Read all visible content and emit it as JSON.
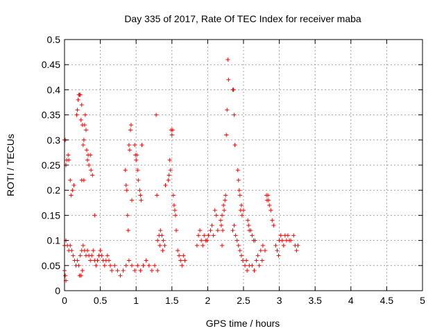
{
  "chart_data": {
    "type": "scatter",
    "title": "Day 335 of 2017, Rate Of TEC Index for receiver maba",
    "xlabel": "GPS time / hours",
    "ylabel": "ROTI / TECUs",
    "xlim": [
      0,
      5
    ],
    "ylim": [
      0,
      0.5
    ],
    "x_ticks": [
      0,
      0.5,
      1,
      1.5,
      2,
      2.5,
      3,
      3.5,
      4,
      4.5,
      5
    ],
    "x_tick_labels": [
      "0",
      "0.5",
      "1",
      "1.5",
      "2",
      "2.5",
      "3",
      "3.5",
      "4",
      "4.5",
      "5"
    ],
    "y_ticks": [
      0,
      0.05,
      0.1,
      0.15,
      0.2,
      0.25,
      0.3,
      0.35,
      0.4,
      0.45,
      0.5
    ],
    "y_tick_labels": [
      "0",
      "0.05",
      "0.1",
      "0.15",
      "0.2",
      "0.25",
      "0.3",
      "0.35",
      "0.4",
      "0.45",
      "0.5"
    ],
    "grid": true,
    "marker": "+",
    "marker_color": "#ff0000",
    "series": [
      {
        "name": "ROTI",
        "points": [
          [
            0.0,
            0.3
          ],
          [
            0.01,
            0.3
          ],
          [
            0.02,
            0.25
          ],
          [
            0.03,
            0.26
          ],
          [
            0.05,
            0.27
          ],
          [
            0.06,
            0.26
          ],
          [
            0.08,
            0.22
          ],
          [
            0.09,
            0.19
          ],
          [
            0.11,
            0.2
          ],
          [
            0.13,
            0.21
          ],
          [
            0.17,
            0.35
          ],
          [
            0.18,
            0.36
          ],
          [
            0.19,
            0.38
          ],
          [
            0.2,
            0.39
          ],
          [
            0.21,
            0.39
          ],
          [
            0.22,
            0.39
          ],
          [
            0.23,
            0.34
          ],
          [
            0.24,
            0.37
          ],
          [
            0.25,
            0.33
          ],
          [
            0.26,
            0.29
          ],
          [
            0.27,
            0.3
          ],
          [
            0.28,
            0.33
          ],
          [
            0.29,
            0.35
          ],
          [
            0.3,
            0.32
          ],
          [
            0.31,
            0.28
          ],
          [
            0.32,
            0.26
          ],
          [
            0.33,
            0.27
          ],
          [
            0.34,
            0.25
          ],
          [
            0.36,
            0.27
          ],
          [
            0.37,
            0.24
          ],
          [
            0.39,
            0.23
          ],
          [
            0.42,
            0.15
          ],
          [
            0.24,
            0.22
          ],
          [
            0.27,
            0.22
          ],
          [
            0.85,
            0.24
          ],
          [
            0.86,
            0.21
          ],
          [
            0.87,
            0.2
          ],
          [
            0.88,
            0.15
          ],
          [
            0.89,
            0.12
          ],
          [
            0.9,
            0.29
          ],
          [
            0.91,
            0.28
          ],
          [
            0.92,
            0.32
          ],
          [
            0.93,
            0.33
          ],
          [
            0.94,
            0.18
          ],
          [
            0.98,
            0.29
          ],
          [
            0.99,
            0.27
          ],
          [
            1.0,
            0.26
          ],
          [
            1.01,
            0.27
          ],
          [
            1.02,
            0.24
          ],
          [
            1.03,
            0.22
          ],
          [
            1.05,
            0.2
          ],
          [
            1.06,
            0.19
          ],
          [
            1.07,
            0.18
          ],
          [
            1.08,
            0.29
          ],
          [
            1.28,
            0.35
          ],
          [
            1.29,
            0.19
          ],
          [
            1.45,
            0.22
          ],
          [
            1.46,
            0.23
          ],
          [
            1.47,
            0.26
          ],
          [
            1.48,
            0.24
          ],
          [
            1.49,
            0.32
          ],
          [
            1.5,
            0.31
          ],
          [
            1.51,
            0.32
          ],
          [
            1.52,
            0.19
          ],
          [
            1.53,
            0.17
          ],
          [
            1.54,
            0.16
          ],
          [
            1.55,
            0.15
          ],
          [
            1.56,
            0.12
          ],
          [
            1.41,
            0.21
          ],
          [
            2.22,
            0.17
          ],
          [
            2.23,
            0.16
          ],
          [
            2.24,
            0.18
          ],
          [
            2.25,
            0.19
          ],
          [
            2.26,
            0.31
          ],
          [
            2.27,
            0.36
          ],
          [
            2.28,
            0.46
          ],
          [
            2.29,
            0.42
          ],
          [
            2.35,
            0.4
          ],
          [
            2.36,
            0.4
          ],
          [
            2.37,
            0.35
          ],
          [
            2.38,
            0.29
          ],
          [
            2.42,
            0.24
          ],
          [
            2.43,
            0.22
          ],
          [
            2.44,
            0.2
          ],
          [
            2.45,
            0.19
          ],
          [
            2.46,
            0.16
          ],
          [
            2.47,
            0.17
          ],
          [
            2.48,
            0.15
          ],
          [
            2.5,
            0.16
          ],
          [
            2.18,
            0.14
          ],
          [
            2.19,
            0.13
          ],
          [
            2.2,
            0.15
          ],
          [
            2.21,
            0.12
          ],
          [
            2.1,
            0.16
          ],
          [
            2.12,
            0.15
          ],
          [
            2.14,
            0.12
          ],
          [
            2.2,
            0.09
          ],
          [
            2.56,
            0.14
          ],
          [
            2.57,
            0.13
          ],
          [
            2.58,
            0.12
          ],
          [
            2.6,
            0.12
          ],
          [
            2.62,
            0.11
          ],
          [
            2.64,
            0.1
          ],
          [
            2.66,
            0.1
          ],
          [
            2.82,
            0.19
          ],
          [
            2.83,
            0.18
          ],
          [
            2.84,
            0.19
          ],
          [
            2.85,
            0.18
          ],
          [
            2.86,
            0.17
          ],
          [
            2.88,
            0.16
          ],
          [
            2.9,
            0.14
          ],
          [
            2.92,
            0.13
          ],
          [
            3.0,
            0.1
          ],
          [
            3.02,
            0.11
          ],
          [
            3.04,
            0.1
          ],
          [
            3.06,
            0.09
          ],
          [
            3.08,
            0.11
          ],
          [
            3.1,
            0.1
          ],
          [
            3.12,
            0.11
          ],
          [
            3.14,
            0.1
          ],
          [
            3.16,
            0.1
          ],
          [
            3.2,
            0.11
          ],
          [
            3.22,
            0.09
          ],
          [
            3.24,
            0.08
          ],
          [
            3.26,
            0.09
          ],
          [
            2.95,
            0.09
          ],
          [
            2.97,
            0.08
          ],
          [
            2.99,
            0.07
          ],
          [
            2.8,
            0.08
          ],
          [
            2.77,
            0.09
          ],
          [
            2.74,
            0.08
          ],
          [
            2.7,
            0.07
          ],
          [
            2.68,
            0.06
          ],
          [
            2.72,
            0.05
          ],
          [
            2.76,
            0.06
          ],
          [
            2.62,
            0.05
          ],
          [
            2.65,
            0.04
          ],
          [
            2.55,
            0.04
          ],
          [
            2.58,
            0.05
          ],
          [
            1.3,
            0.1
          ],
          [
            1.32,
            0.11
          ],
          [
            1.34,
            0.12
          ],
          [
            1.36,
            0.11
          ],
          [
            1.38,
            0.1
          ],
          [
            1.4,
            0.09
          ],
          [
            1.33,
            0.09
          ],
          [
            1.37,
            0.08
          ],
          [
            1.58,
            0.08
          ],
          [
            1.6,
            0.07
          ],
          [
            1.62,
            0.06
          ],
          [
            1.64,
            0.05
          ],
          [
            1.66,
            0.07
          ],
          [
            1.68,
            0.06
          ],
          [
            1.85,
            0.09
          ],
          [
            1.87,
            0.11
          ],
          [
            1.89,
            0.12
          ],
          [
            1.91,
            0.1
          ],
          [
            1.93,
            0.09
          ],
          [
            1.95,
            0.11
          ],
          [
            1.97,
            0.1
          ],
          [
            1.99,
            0.1
          ],
          [
            2.01,
            0.11
          ],
          [
            2.04,
            0.12
          ],
          [
            2.06,
            0.13
          ],
          [
            2.08,
            0.11
          ],
          [
            2.35,
            0.12
          ],
          [
            2.37,
            0.13
          ],
          [
            2.39,
            0.11
          ],
          [
            2.41,
            0.1
          ],
          [
            2.43,
            0.09
          ],
          [
            2.45,
            0.08
          ],
          [
            2.47,
            0.07
          ],
          [
            2.49,
            0.06
          ],
          [
            2.52,
            0.05
          ],
          [
            2.54,
            0.06
          ],
          [
            0.0,
            0.09
          ],
          [
            0.02,
            0.1
          ],
          [
            0.04,
            0.09
          ],
          [
            0.06,
            0.08
          ],
          [
            0.08,
            0.09
          ],
          [
            0.1,
            0.08
          ],
          [
            0.12,
            0.07
          ],
          [
            0.14,
            0.06
          ],
          [
            0.16,
            0.05
          ],
          [
            0.18,
            0.06
          ],
          [
            0.2,
            0.05
          ],
          [
            0.22,
            0.07
          ],
          [
            0.24,
            0.08
          ],
          [
            0.26,
            0.09
          ],
          [
            0.28,
            0.08
          ],
          [
            0.3,
            0.07
          ],
          [
            0.32,
            0.08
          ],
          [
            0.34,
            0.07
          ],
          [
            0.36,
            0.06
          ],
          [
            0.38,
            0.07
          ],
          [
            0.4,
            0.08
          ],
          [
            0.42,
            0.06
          ],
          [
            0.44,
            0.05
          ],
          [
            0.46,
            0.06
          ],
          [
            0.48,
            0.07
          ],
          [
            0.5,
            0.08
          ],
          [
            0.52,
            0.07
          ],
          [
            0.54,
            0.06
          ],
          [
            0.56,
            0.05
          ],
          [
            0.58,
            0.06
          ],
          [
            0.6,
            0.07
          ],
          [
            0.62,
            0.06
          ],
          [
            0.64,
            0.05
          ],
          [
            0.66,
            0.04
          ],
          [
            0.7,
            0.05
          ],
          [
            0.74,
            0.04
          ],
          [
            0.78,
            0.03
          ],
          [
            0.82,
            0.04
          ],
          [
            0.86,
            0.05
          ],
          [
            0.9,
            0.06
          ],
          [
            0.94,
            0.05
          ],
          [
            0.98,
            0.04
          ],
          [
            1.02,
            0.05
          ],
          [
            1.06,
            0.04
          ],
          [
            1.1,
            0.05
          ],
          [
            1.14,
            0.06
          ],
          [
            1.18,
            0.05
          ],
          [
            1.22,
            0.04
          ],
          [
            1.26,
            0.05
          ],
          [
            1.3,
            0.04
          ],
          [
            0.01,
            0.03
          ],
          [
            0.02,
            0.02
          ],
          [
            0.0,
            0.04
          ],
          [
            0.21,
            0.03
          ],
          [
            0.23,
            0.03
          ],
          [
            0.25,
            0.04
          ]
        ]
      }
    ]
  }
}
